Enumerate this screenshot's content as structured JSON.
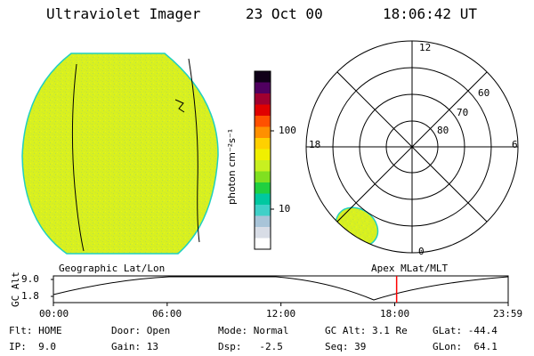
{
  "header": {
    "instrument": "Ultraviolet Imager",
    "date": "23 Oct 00",
    "time": "18:06:42 UT"
  },
  "colorbar": {
    "unit_label": "photon cm⁻²s⁻¹",
    "ticks": [
      {
        "label": "100",
        "value": 100
      },
      {
        "label": "10",
        "value": 10
      }
    ],
    "colors": [
      "#ffffff",
      "#d8dde6",
      "#a8c4d8",
      "#40d0c8",
      "#00c8a0",
      "#20d040",
      "#80e020",
      "#c8f020",
      "#f0f000",
      "#ffd000",
      "#ff9000",
      "#ff5000",
      "#e00000",
      "#a00030",
      "#500060",
      "#100018"
    ]
  },
  "polar_plot": {
    "mlt_labels": {
      "top": "12",
      "left": "18",
      "right": "6",
      "bottom": "0"
    },
    "lat_labels": [
      "60",
      "70",
      "80"
    ]
  },
  "timeline": {
    "left_label": "Geographic Lat/Lon",
    "right_label": "Apex MLat/MLT",
    "axis_title": "GC Alt",
    "y_ticks": [
      "9.0",
      "1.8"
    ],
    "x_ticks": [
      "00:00",
      "06:00",
      "12:00",
      "18:00",
      "23:59"
    ],
    "marker_time": "18:06",
    "marker_color": "#ff0000"
  },
  "status": {
    "row1": [
      {
        "key": "Flt:",
        "value": "HOME"
      },
      {
        "key": "Door:",
        "value": "Open"
      },
      {
        "key": "Mode:",
        "value": "Normal"
      },
      {
        "key": "GC Alt:",
        "value": "3.1 Re"
      },
      {
        "key": "GLat:",
        "value": "-44.4"
      }
    ],
    "row2": [
      {
        "key": "IP:",
        "value": "9.0"
      },
      {
        "key": "Gain:",
        "value": "13"
      },
      {
        "key": "Dsp:",
        "value": "-2.5"
      },
      {
        "key": "Seq:",
        "value": "39"
      },
      {
        "key": "GLon:",
        "value": "64.1"
      }
    ]
  },
  "image_color": "#d8f020"
}
